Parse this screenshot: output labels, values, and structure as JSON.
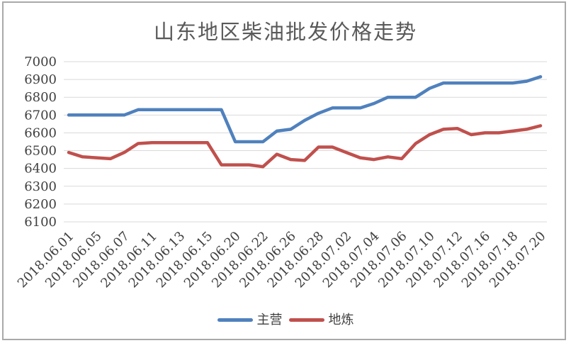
{
  "window": {
    "background": "#ffffff",
    "frame_border_color": "#a9a9a9"
  },
  "chart_data": {
    "type": "line",
    "title": "山东地区柴油批发价格走势",
    "title_color": "#595959",
    "grid": "horizontal",
    "grid_color": "#d9d9d9",
    "axis_label_color": "#404040",
    "legend_position": "bottom",
    "y_axis": {
      "min": 6100,
      "max": 7000,
      "step": 100,
      "tick_labels": [
        "7000",
        "6900",
        "6800",
        "6700",
        "6600",
        "6500",
        "6400",
        "6300",
        "6200",
        "6100"
      ]
    },
    "x_axis": {
      "tick_labels": [
        "2018.06.01",
        "2018.06.05",
        "2018.06.07",
        "2018.06.11",
        "2018.06.13",
        "2018.06.15",
        "2018.06.20",
        "2018.06.22",
        "2018.06.26",
        "2018.06.28",
        "2018.07.02",
        "2018.07.04",
        "2018.07.06",
        "2018.07.10",
        "2018.07.12",
        "2018.07.16",
        "2018.07.18",
        "2018.07.20"
      ],
      "label_point_indices": [
        0,
        2,
        4,
        6,
        8,
        10,
        12,
        14,
        16,
        18,
        20,
        22,
        24,
        26,
        28,
        30,
        32,
        34
      ],
      "rotation_deg": -45
    },
    "series": [
      {
        "name": "主营",
        "color": "#4f81bd",
        "values": [
          6700,
          6700,
          6700,
          6700,
          6700,
          6730,
          6730,
          6730,
          6730,
          6730,
          6730,
          6730,
          6550,
          6550,
          6550,
          6610,
          6620,
          6670,
          6710,
          6740,
          6740,
          6740,
          6765,
          6800,
          6800,
          6800,
          6850,
          6880,
          6880,
          6880,
          6880,
          6880,
          6880,
          6890,
          6915
        ]
      },
      {
        "name": "地炼",
        "color": "#c0504d",
        "values": [
          6490,
          6465,
          6460,
          6455,
          6490,
          6540,
          6545,
          6545,
          6545,
          6545,
          6545,
          6420,
          6420,
          6420,
          6410,
          6480,
          6450,
          6445,
          6520,
          6520,
          6490,
          6460,
          6450,
          6465,
          6455,
          6540,
          6590,
          6620,
          6625,
          6590,
          6600,
          6600,
          6610,
          6620,
          6640
        ]
      }
    ]
  }
}
